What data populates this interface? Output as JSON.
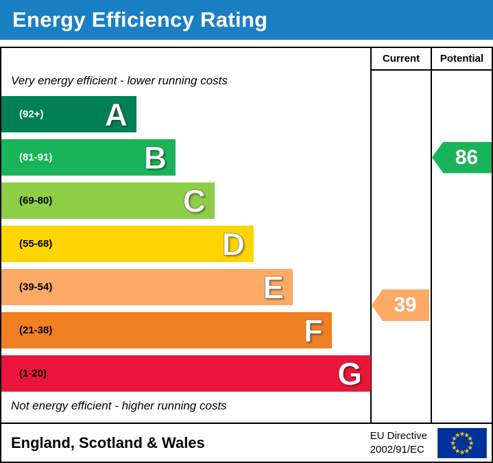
{
  "header": {
    "title": "Energy Efficiency Rating",
    "bg_color": "#1b7fc4"
  },
  "columns": {
    "current_label": "Current",
    "potential_label": "Potential"
  },
  "notes": {
    "top": "Very energy efficient - lower running costs",
    "bottom": "Not energy efficient - higher running costs"
  },
  "bands": [
    {
      "letter": "A",
      "range": "(92+)",
      "color": "#008054",
      "range_text_color": "#ffffff"
    },
    {
      "letter": "B",
      "range": "(81-91)",
      "color": "#19b459",
      "range_text_color": "#ffffff"
    },
    {
      "letter": "C",
      "range": "(69-80)",
      "color": "#8dce46",
      "range_text_color": "#000000"
    },
    {
      "letter": "D",
      "range": "(55-68)",
      "color": "#ffd500",
      "range_text_color": "#000000"
    },
    {
      "letter": "E",
      "range": "(39-54)",
      "color": "#fcaa65",
      "range_text_color": "#000000"
    },
    {
      "letter": "F",
      "range": "(21-38)",
      "color": "#ef8023",
      "range_text_color": "#000000"
    },
    {
      "letter": "G",
      "range": "(1-20)",
      "color": "#e9153b",
      "range_text_color": "#000000"
    }
  ],
  "ratings": {
    "current": {
      "value": "39",
      "band_letter": "E",
      "color": "#fcaa65"
    },
    "potential": {
      "value": "86",
      "band_letter": "B",
      "color": "#19b459"
    }
  },
  "footer": {
    "region": "England, Scotland & Wales",
    "directive_line1": "EU Directive",
    "directive_line2": "2002/91/EC",
    "eu_flag": {
      "bg": "#003399",
      "star": "#ffcc00"
    }
  },
  "chart_data": {
    "type": "bar",
    "orientation": "horizontal",
    "title": "Energy Efficiency Rating",
    "categories": [
      "A",
      "B",
      "C",
      "D",
      "E",
      "F",
      "G"
    ],
    "band_labels": [
      "(92+)",
      "(81-91)",
      "(69-80)",
      "(55-68)",
      "(39-54)",
      "(21-38)",
      "(1-20)"
    ],
    "band_ranges": [
      [
        92,
        100
      ],
      [
        81,
        91
      ],
      [
        69,
        80
      ],
      [
        55,
        68
      ],
      [
        39,
        54
      ],
      [
        21,
        38
      ],
      [
        1,
        20
      ]
    ],
    "band_colors": [
      "#008054",
      "#19b459",
      "#8dce46",
      "#ffd500",
      "#fcaa65",
      "#ef8023",
      "#e9153b"
    ],
    "scale": [
      1,
      100
    ],
    "markers": [
      {
        "name": "Current",
        "value": 39,
        "band": "E",
        "color": "#fcaa65"
      },
      {
        "name": "Potential",
        "value": 86,
        "band": "B",
        "color": "#19b459"
      }
    ],
    "annotations": [
      "Very energy efficient - lower running costs",
      "Not energy efficient - higher running costs"
    ],
    "legend_position": "none",
    "grid": false,
    "region": "England, Scotland & Wales",
    "directive": "EU Directive 2002/91/EC"
  }
}
